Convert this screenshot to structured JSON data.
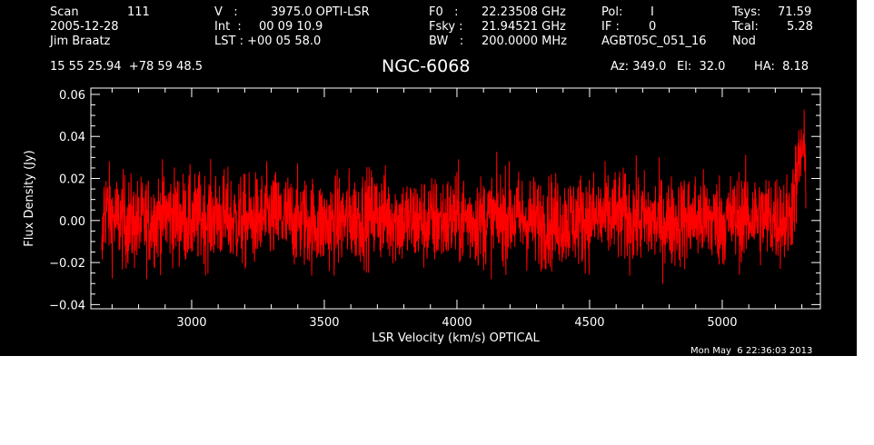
{
  "header": {
    "scan_label": "Scan",
    "scan_value": "111",
    "date": "2005-12-28",
    "observer": "Jim Braatz",
    "coords": "15 55 25.94  +78 59 48.5",
    "v_label": "V   :",
    "v_value": "3975.0 OPTI-LSR",
    "int_label": "Int  :",
    "int_value": "00 09 10.9",
    "lst_label": "LST : +00 05 58.0",
    "f0_label": "F0   :",
    "f0_value": "22.23508 GHz",
    "fsky_label": "Fsky :",
    "fsky_value": "21.94521 GHz",
    "bw_label": "BW   :",
    "bw_value": "200.0000 MHz",
    "pol_label": "Pol:",
    "pol_value": "I",
    "if_label": "IF :",
    "if_value": "0",
    "project": "AGBT05C_051_16",
    "tsys_label": "Tsys:",
    "tsys_value": "71.59",
    "tcal_label": "Tcal:",
    "tcal_value": "5.28",
    "mode": "Nod",
    "source": "NGC-6068",
    "az": "Az: 349.0",
    "el": "El:  32.0",
    "ha": "HA:  8.18"
  },
  "footer": {
    "timestamp": "Mon May  6 22:36:03 2013"
  },
  "colors": {
    "background": "#000000",
    "axes": "#ffffff",
    "trace": "#ff0000"
  },
  "chart_data": {
    "type": "line",
    "xlabel": "LSR Velocity (km/s) OPTICAL",
    "ylabel": "Flux Density (Jy)",
    "xlim": [
      2620,
      5370
    ],
    "ylim": [
      -0.042,
      0.063
    ],
    "xticks": [
      3000,
      3500,
      4000,
      4500,
      5000
    ],
    "xtick_labels": [
      "3000",
      "3500",
      "4000",
      "4500",
      "5000"
    ],
    "yticks": [
      -0.04,
      -0.02,
      0.0,
      0.02,
      0.04,
      0.06
    ],
    "ytick_labels": [
      "−0.04",
      "−0.02",
      "0.00",
      "0.02",
      "0.04",
      "0.06"
    ],
    "series": [
      {
        "color": "#ff0000",
        "x": [
          2660,
          2670,
          2700,
          2800,
          2900,
          3000,
          3100,
          3200,
          3300,
          3400,
          3500,
          3600,
          3700,
          3800,
          3900,
          4000,
          4100,
          4200,
          4300,
          4400,
          4500,
          4600,
          4700,
          4800,
          4900,
          5000,
          5100,
          5200,
          5250,
          5280,
          5300,
          5315
        ],
        "y": [
          -0.025,
          0.008,
          0.001,
          -0.002,
          0.003,
          0.0,
          0.002,
          -0.001,
          0.002,
          0.0,
          -0.002,
          0.001,
          0.003,
          0.0,
          -0.001,
          0.001,
          0.0,
          0.002,
          -0.001,
          0.0,
          0.001,
          0.002,
          0.0,
          -0.001,
          0.001,
          0.0,
          0.002,
          0.001,
          0.0,
          0.018,
          0.035,
          0.025
        ],
        "noise_rms": 0.011
      }
    ]
  }
}
